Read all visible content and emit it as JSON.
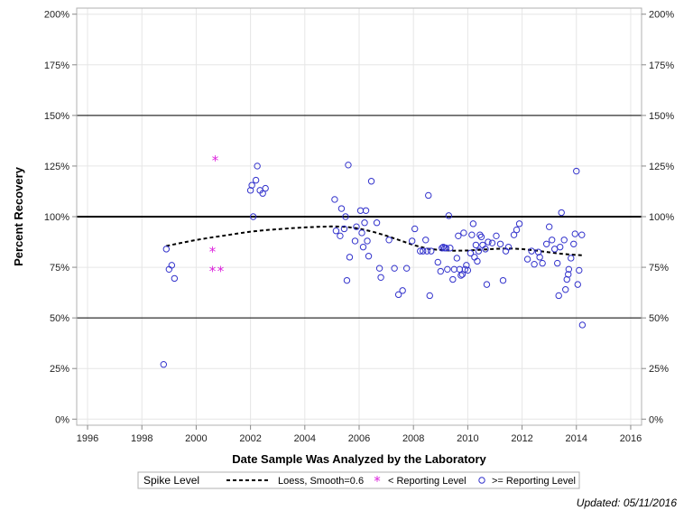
{
  "chart_data": {
    "type": "scatter",
    "xlabel": "Date Sample Was Analyzed by the Laboratory",
    "ylabel": "Percent Recovery",
    "xlim": [
      1995.6,
      2016.4
    ],
    "ylim": [
      -3,
      203
    ],
    "x_ticks": [
      1996,
      1998,
      2000,
      2002,
      2004,
      2006,
      2008,
      2010,
      2012,
      2014,
      2016
    ],
    "x_tick_labels": [
      "1996",
      "1998",
      "2000",
      "2002",
      "2004",
      "2006",
      "2008",
      "2010",
      "2012",
      "2014",
      "2016"
    ],
    "y_ticks": [
      0,
      25,
      50,
      75,
      100,
      125,
      150,
      175,
      200
    ],
    "y_tick_labels": [
      "0%",
      "25%",
      "50%",
      "75%",
      "100%",
      "125%",
      "150%",
      "175%",
      "200%"
    ],
    "reference_lines": [
      {
        "y": 50,
        "style": "thin"
      },
      {
        "y": 100,
        "style": "thick"
      },
      {
        "y": 150,
        "style": "thin"
      }
    ],
    "colors": {
      "ge_reporting": "#3333cc",
      "lt_reporting": "#dd22dd",
      "loess": "#000000",
      "ref_line": "#000000",
      "grid": "#e6e6e6"
    },
    "grid": true,
    "legend_position": "bottom",
    "series": [
      {
        "name": "Loess, Smoothing=0.6",
        "type": "line",
        "style": "dashed",
        "x": [
          1998.9,
          1999.5,
          2000.0,
          2000.5,
          2001.0,
          2001.5,
          2002.0,
          2002.5,
          2003.0,
          2003.5,
          2004.0,
          2004.5,
          2005.0,
          2005.5,
          2006.0,
          2006.5,
          2007.0,
          2007.5,
          2008.0,
          2008.5,
          2009.0,
          2009.5,
          2010.0,
          2010.5,
          2011.0,
          2011.5,
          2012.0,
          2012.5,
          2013.0,
          2013.5,
          2014.0,
          2014.2
        ],
        "y": [
          85.5,
          87.2,
          88.5,
          89.6,
          90.6,
          91.6,
          92.6,
          93.3,
          93.8,
          94.3,
          94.7,
          95.0,
          95.2,
          95.0,
          94.1,
          92.6,
          90.6,
          88.3,
          86.0,
          84.2,
          83.5,
          83.2,
          83.3,
          83.7,
          84.1,
          84.3,
          84.0,
          83.3,
          82.4,
          81.6,
          81.1,
          80.9
        ]
      },
      {
        "name": "< Reporting Level",
        "type": "scatter",
        "marker": "asterisk",
        "points": [
          [
            2000.7,
            128
          ],
          [
            2000.6,
            83
          ],
          [
            2000.6,
            73.5
          ],
          [
            2000.9,
            73.5
          ]
        ]
      },
      {
        "name": ">= Reporting Level",
        "type": "scatter",
        "marker": "circle",
        "points": [
          [
            1998.8,
            27
          ],
          [
            1998.9,
            84
          ],
          [
            1999.0,
            74
          ],
          [
            1999.1,
            76
          ],
          [
            1999.2,
            69.5
          ],
          [
            2002.0,
            113
          ],
          [
            2002.05,
            115.5
          ],
          [
            2002.1,
            100
          ],
          [
            2002.2,
            118
          ],
          [
            2002.25,
            125
          ],
          [
            2002.35,
            113
          ],
          [
            2002.45,
            111.5
          ],
          [
            2002.55,
            114
          ],
          [
            2005.1,
            108.5
          ],
          [
            2005.15,
            93
          ],
          [
            2005.3,
            90.5
          ],
          [
            2005.35,
            104
          ],
          [
            2005.45,
            94
          ],
          [
            2005.5,
            100
          ],
          [
            2005.55,
            68.5
          ],
          [
            2005.6,
            125.5
          ],
          [
            2005.65,
            80
          ],
          [
            2005.85,
            88
          ],
          [
            2005.9,
            95
          ],
          [
            2006.05,
            103
          ],
          [
            2006.1,
            92
          ],
          [
            2006.15,
            85
          ],
          [
            2006.2,
            97
          ],
          [
            2006.25,
            103
          ],
          [
            2006.3,
            88
          ],
          [
            2006.35,
            80.5
          ],
          [
            2006.45,
            117.5
          ],
          [
            2006.65,
            97
          ],
          [
            2006.75,
            74.5
          ],
          [
            2006.8,
            70
          ],
          [
            2007.1,
            88.5
          ],
          [
            2007.3,
            74.5
          ],
          [
            2007.45,
            61.5
          ],
          [
            2007.6,
            63.5
          ],
          [
            2007.75,
            74.5
          ],
          [
            2007.95,
            88
          ],
          [
            2008.05,
            94
          ],
          [
            2008.25,
            83
          ],
          [
            2008.35,
            83
          ],
          [
            2008.45,
            88.5
          ],
          [
            2008.5,
            83
          ],
          [
            2008.55,
            110.5
          ],
          [
            2008.6,
            61
          ],
          [
            2008.65,
            83
          ],
          [
            2008.9,
            77.5
          ],
          [
            2009.0,
            73
          ],
          [
            2009.05,
            84.5
          ],
          [
            2009.1,
            85
          ],
          [
            2009.15,
            84.5
          ],
          [
            2009.2,
            84.5
          ],
          [
            2009.25,
            74
          ],
          [
            2009.3,
            100.5
          ],
          [
            2009.35,
            84.5
          ],
          [
            2009.45,
            69
          ],
          [
            2009.5,
            74
          ],
          [
            2009.6,
            79.5
          ],
          [
            2009.65,
            90.5
          ],
          [
            2009.7,
            74
          ],
          [
            2009.75,
            71
          ],
          [
            2009.8,
            71.5
          ],
          [
            2009.85,
            92
          ],
          [
            2009.9,
            74
          ],
          [
            2009.95,
            76
          ],
          [
            2010.0,
            73.5
          ],
          [
            2010.1,
            82
          ],
          [
            2010.15,
            91
          ],
          [
            2010.2,
            96.5
          ],
          [
            2010.25,
            80
          ],
          [
            2010.3,
            86
          ],
          [
            2010.35,
            78
          ],
          [
            2010.4,
            83
          ],
          [
            2010.45,
            91
          ],
          [
            2010.5,
            90
          ],
          [
            2010.55,
            86
          ],
          [
            2010.65,
            84
          ],
          [
            2010.7,
            66.5
          ],
          [
            2010.75,
            87.5
          ],
          [
            2010.9,
            87
          ],
          [
            2011.05,
            90.5
          ],
          [
            2011.2,
            86.5
          ],
          [
            2011.3,
            68.5
          ],
          [
            2011.4,
            83
          ],
          [
            2011.5,
            85
          ],
          [
            2011.7,
            91
          ],
          [
            2011.8,
            93.5
          ],
          [
            2011.9,
            96.5
          ],
          [
            2012.2,
            79
          ],
          [
            2012.35,
            83
          ],
          [
            2012.45,
            76.5
          ],
          [
            2012.6,
            82.5
          ],
          [
            2012.65,
            80
          ],
          [
            2012.75,
            77
          ],
          [
            2012.9,
            86.5
          ],
          [
            2013.0,
            95
          ],
          [
            2013.1,
            88.5
          ],
          [
            2013.2,
            84
          ],
          [
            2013.3,
            77
          ],
          [
            2013.35,
            61
          ],
          [
            2013.4,
            85
          ],
          [
            2013.45,
            102
          ],
          [
            2013.55,
            88.5
          ],
          [
            2013.6,
            64
          ],
          [
            2013.65,
            69
          ],
          [
            2013.7,
            71.5
          ],
          [
            2013.72,
            74
          ],
          [
            2013.8,
            79.5
          ],
          [
            2013.9,
            86.5
          ],
          [
            2013.95,
            91.5
          ],
          [
            2014.0,
            122.5
          ],
          [
            2014.05,
            66.5
          ],
          [
            2014.1,
            73.5
          ],
          [
            2014.2,
            91
          ],
          [
            2014.22,
            46.5
          ]
        ]
      }
    ]
  },
  "legend": {
    "title": "Spike Level",
    "items": [
      {
        "label": "Loess, Smooth=0.6",
        "marker": "dashed-line"
      },
      {
        "label": "< Reporting Level",
        "marker": "asterisk"
      },
      {
        "label": ">= Reporting Level",
        "marker": "circle"
      }
    ]
  },
  "footnote": "Updated: 05/11/2016"
}
